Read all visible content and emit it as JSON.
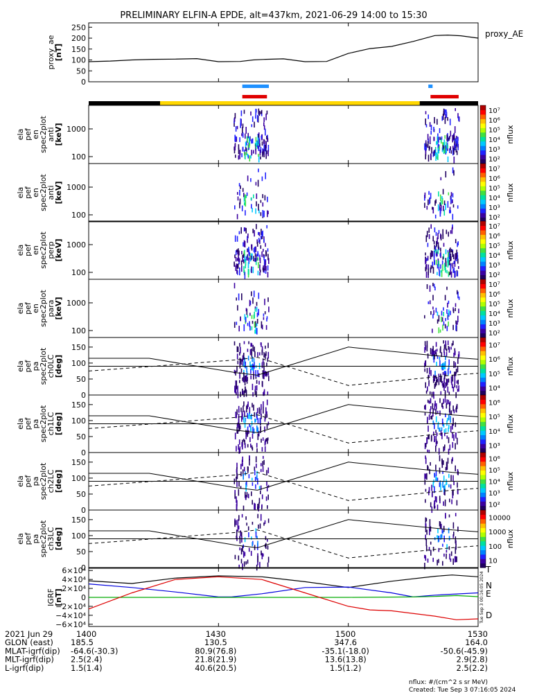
{
  "chart_data": {
    "type": "line",
    "title": "PRELIMINARY ELFIN-A EPDE, alt=437km, 2021-06-29 14:00 to 15:30",
    "time_ticks": [
      "1400",
      "1430",
      "1500",
      "1530"
    ],
    "proxy_ae": {
      "ylabel": [
        "proxy_ae",
        "[nT]"
      ],
      "legend": "proxy_AE",
      "yticks": [
        "0",
        "50",
        "100",
        "150",
        "200",
        "250"
      ],
      "ylim": [
        0,
        270
      ],
      "series": [
        {
          "t": [
            0,
            5,
            10,
            15,
            20,
            25,
            30,
            35,
            38,
            41,
            45,
            50,
            55,
            60,
            65,
            70,
            75,
            80,
            83,
            86,
            90
          ],
          "v": [
            92,
            95,
            100,
            103,
            104,
            106,
            92,
            93,
            100,
            103,
            105,
            92,
            93,
            130,
            152,
            162,
            185,
            212,
            214,
            211,
            200
          ]
        }
      ]
    },
    "spectrograms": [
      {
        "ylabel": [
          "ela",
          "pef",
          "en",
          "spec2plot",
          "anti",
          "[keV]"
        ],
        "yticks": [
          "100",
          "1000"
        ],
        "cb_label": "nflux",
        "cb_ticks": [
          "10²",
          "10³",
          "10⁴",
          "10⁵",
          "10⁶",
          "10⁷"
        ],
        "intensity": 1.0
      },
      {
        "ylabel": [
          "ela",
          "pef",
          "en",
          "spec2plot",
          "anti",
          "[keV]"
        ],
        "yticks": [
          "100",
          "1000"
        ],
        "cb_label": "nflux",
        "cb_ticks": [
          "10²",
          "10³",
          "10⁴",
          "10⁵",
          "10⁶",
          "10⁷"
        ],
        "intensity": 0.35
      },
      {
        "ylabel": [
          "ela",
          "pef",
          "en",
          "spec2plot",
          "perp",
          "[keV]"
        ],
        "yticks": [
          "100",
          "1000"
        ],
        "cb_label": "nflux",
        "cb_ticks": [
          "10²",
          "10³",
          "10⁴",
          "10⁵",
          "10⁶",
          "10⁷"
        ],
        "intensity": 1.0
      },
      {
        "ylabel": [
          "ela",
          "pef",
          "en",
          "spec2plot",
          "para",
          "[keV]"
        ],
        "yticks": [
          "100",
          "1000"
        ],
        "cb_label": "nflux",
        "cb_ticks": [
          "10²",
          "10³",
          "10⁴",
          "10⁵",
          "10⁶",
          "10⁷"
        ],
        "intensity": 0.4
      }
    ],
    "pitch_angle": [
      {
        "ylabel": [
          "ela",
          "pef",
          "pa",
          "spec2plot",
          "ch0LC",
          "[deg]"
        ],
        "yticks": [
          "0",
          "50",
          "100",
          "150"
        ],
        "cb_label": "nflux",
        "cb_ticks": [
          "10⁴",
          "10⁵",
          "10⁶",
          "10⁷"
        ],
        "intensity": 1.0
      },
      {
        "ylabel": [
          "ela",
          "pef",
          "pa",
          "spec2plot",
          "ch1LC",
          "[deg]"
        ],
        "yticks": [
          "0",
          "50",
          "100",
          "150"
        ],
        "cb_label": "nflux",
        "cb_ticks": [
          "10³",
          "10⁴",
          "10⁵",
          "10⁶"
        ],
        "intensity": 0.8
      },
      {
        "ylabel": [
          "ela",
          "pef",
          "pa",
          "spec2plot",
          "ch2LC",
          "[deg]"
        ],
        "yticks": [
          "0",
          "50",
          "100",
          "150"
        ],
        "cb_label": "nflux",
        "cb_ticks": [
          "10²",
          "10³",
          "10⁴",
          "10⁵",
          "10⁶"
        ],
        "intensity": 0.6
      },
      {
        "ylabel": [
          "ela",
          "pef",
          "pa",
          "spec2plot",
          "ch3LC",
          "[deg]"
        ],
        "yticks": [
          "0",
          "50",
          "100",
          "150"
        ],
        "cb_label": "nflux",
        "cb_ticks": [
          "10",
          "100",
          "1000",
          "10000"
        ],
        "intensity": 0.5
      }
    ],
    "pa_solid": {
      "t": [
        0,
        14,
        34,
        39,
        60,
        84,
        90
      ],
      "v": [
        115,
        115,
        70,
        62,
        150,
        118,
        112
      ]
    },
    "pa_dashed": {
      "t": [
        0,
        15,
        34,
        39,
        60,
        84,
        90
      ],
      "v": [
        75,
        90,
        110,
        118,
        30,
        62,
        68
      ]
    },
    "pa_ref_deg": 90,
    "igrf": {
      "ylabel": [
        "IGRF",
        "[nT]"
      ],
      "yticks": [
        "6×10⁴",
        "4×10⁴",
        "2×10⁴",
        "0",
        "−2×10⁴",
        "−4×10⁴",
        "−6×10⁴"
      ],
      "ylim": [
        -65000,
        65000
      ],
      "legend": [
        "T",
        "N",
        "E",
        "D"
      ],
      "colors": [
        "#000000",
        "#0000dd",
        "#00aa00",
        "#dd0000"
      ],
      "side_text": "Tue Sep  3 00:16:05 2024",
      "series": [
        {
          "name": "T",
          "t": [
            0,
            10,
            20,
            30,
            40,
            50,
            60,
            70,
            80,
            84,
            90
          ],
          "v": [
            37000,
            31000,
            43000,
            48000,
            46000,
            35000,
            22000,
            36000,
            47000,
            50000,
            46000
          ]
        },
        {
          "name": "N",
          "t": [
            0,
            10,
            20,
            30,
            33,
            40,
            50,
            60,
            70,
            75,
            80,
            90
          ],
          "v": [
            30000,
            22000,
            12000,
            1000,
            1000,
            8000,
            22000,
            23000,
            10000,
            1000,
            5000,
            10000
          ]
        },
        {
          "name": "E",
          "t": [
            0,
            20,
            40,
            60,
            75,
            80,
            85,
            90
          ],
          "v": [
            0,
            0,
            0,
            0,
            1000,
            2000,
            4000,
            1500
          ]
        },
        {
          "name": "D",
          "t": [
            0,
            10,
            20,
            30,
            40,
            50,
            60,
            65,
            70,
            80,
            85,
            90
          ],
          "v": [
            -26000,
            10000,
            40000,
            46000,
            40000,
            10000,
            -20000,
            -28000,
            -30000,
            -42000,
            -50000,
            -48000
          ]
        }
      ]
    },
    "ephemeris": {
      "rows": [
        {
          "label": "2021 Jun 29",
          "vals": [
            "1400",
            "1430",
            "1500",
            "1530"
          ]
        },
        {
          "label": "GLON (east)",
          "vals": [
            "185.5",
            "130.5",
            "347.6",
            "164.0"
          ]
        },
        {
          "label": "MLAT-igrf(dip)",
          "vals": [
            "-64.6(-30.3)",
            "80.9(76.8)",
            "-35.1(-18.0)",
            "-50.6(-45.9)"
          ]
        },
        {
          "label": "MLT-igrf(dip)",
          "vals": [
            "2.5(2.4)",
            "21.8(21.9)",
            "13.6(13.8)",
            "2.9(2.8)"
          ]
        },
        {
          "label": "L-igrf(dip)",
          "vals": [
            "1.5(1.4)",
            "40.6(20.5)",
            "1.5(1.2)",
            "2.5(2.2)"
          ]
        }
      ],
      "unit_note": "nflux: #/(cm^2 s sr MeV)",
      "created": "Created: Tue Sep  3 07:16:05 2024"
    },
    "status_bars": {
      "blue_segments": [
        [
          35.5,
          41
        ]
      ],
      "blue_small": [
        [
          78.5,
          79
        ]
      ],
      "red_segments": [
        [
          35.5,
          41.2
        ],
        [
          79,
          85.5
        ]
      ],
      "orbit_segments": [
        {
          "from": 0,
          "to": 16.5,
          "color": "#000000"
        },
        {
          "from": 16.5,
          "to": 76.5,
          "color": "#ffd700"
        },
        {
          "from": 76.5,
          "to": 90,
          "color": "#000000"
        }
      ]
    },
    "bursts": [
      [
        33.5,
        41.5
      ],
      [
        77.5,
        85.5
      ]
    ]
  }
}
